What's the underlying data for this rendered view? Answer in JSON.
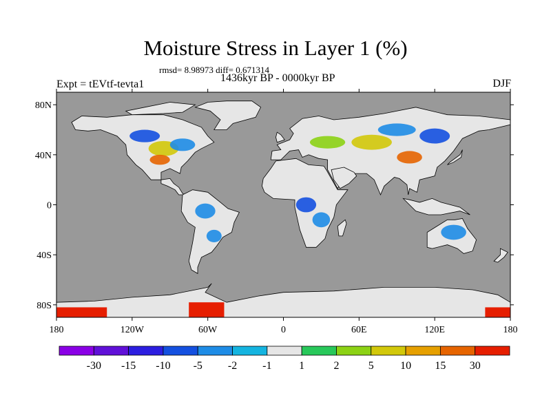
{
  "title": "Moisture Stress in Layer 1 (%)",
  "stats": {
    "rmsd_text": "rmsd= 8.98973 diff= 0.671314",
    "period_text": "1436kyr BP - 0000kyr BP"
  },
  "experiment_label": "Expt = tEVtf-tevta1",
  "season_label": "DJF",
  "axes": {
    "x_ticks": [
      {
        "value": -180,
        "label": "180"
      },
      {
        "value": -120,
        "label": "120W"
      },
      {
        "value": -60,
        "label": "60W"
      },
      {
        "value": 0,
        "label": "0"
      },
      {
        "value": 60,
        "label": "60E"
      },
      {
        "value": 120,
        "label": "120E"
      },
      {
        "value": 180,
        "label": "180"
      }
    ],
    "y_ticks": [
      {
        "value": 80,
        "label": "80N"
      },
      {
        "value": 40,
        "label": "40N"
      },
      {
        "value": 0,
        "label": "0"
      },
      {
        "value": -40,
        "label": "40S"
      },
      {
        "value": -80,
        "label": "80S"
      }
    ],
    "lon_range": [
      -180,
      180
    ],
    "lat_range": [
      -90,
      90
    ]
  },
  "colors": {
    "ocean": "#999999",
    "land_neutral": "#e6e6e6"
  },
  "colorbar": {
    "colors": [
      "#8a00e6",
      "#6010d8",
      "#2c1ee0",
      "#1450e0",
      "#1e8ce6",
      "#14b4e0",
      "#e6e6e6",
      "#28c85a",
      "#8cd214",
      "#d2c80a",
      "#e6a000",
      "#e66400",
      "#e61e00"
    ],
    "labels": [
      "-30",
      "-15",
      "-10",
      "-5",
      "-2",
      "-1",
      "1",
      "2",
      "5",
      "10",
      "15",
      "30"
    ]
  },
  "anomaly_patches": [
    {
      "lon": -95,
      "lat": 45,
      "rx": 12,
      "ry": 6,
      "level": 9
    },
    {
      "lon": -98,
      "lat": 36,
      "rx": 8,
      "ry": 4,
      "level": 11
    },
    {
      "lon": -80,
      "lat": 48,
      "rx": 10,
      "ry": 5,
      "level": 4
    },
    {
      "lon": -110,
      "lat": 55,
      "rx": 12,
      "ry": 5,
      "level": 3
    },
    {
      "lon": -62,
      "lat": -5,
      "rx": 8,
      "ry": 6,
      "level": 4
    },
    {
      "lon": -55,
      "lat": -25,
      "rx": 6,
      "ry": 5,
      "level": 4
    },
    {
      "lon": 18,
      "lat": 0,
      "rx": 8,
      "ry": 6,
      "level": 3
    },
    {
      "lon": 30,
      "lat": -12,
      "rx": 7,
      "ry": 6,
      "level": 4
    },
    {
      "lon": 35,
      "lat": 50,
      "rx": 14,
      "ry": 5,
      "level": 8
    },
    {
      "lon": 70,
      "lat": 50,
      "rx": 16,
      "ry": 6,
      "level": 9
    },
    {
      "lon": 100,
      "lat": 38,
      "rx": 10,
      "ry": 5,
      "level": 11
    },
    {
      "lon": 90,
      "lat": 60,
      "rx": 15,
      "ry": 5,
      "level": 4
    },
    {
      "lon": 120,
      "lat": 55,
      "rx": 12,
      "ry": 6,
      "level": 3
    },
    {
      "lon": 135,
      "lat": -22,
      "rx": 10,
      "ry": 6,
      "level": 4
    }
  ],
  "antarctic_red": [
    {
      "lon": -180,
      "lat": -90,
      "w": 40,
      "h": 8
    },
    {
      "lon": -75,
      "lat": -90,
      "w": 28,
      "h": 12
    },
    {
      "lon": 160,
      "lat": -90,
      "w": 20,
      "h": 8
    }
  ]
}
